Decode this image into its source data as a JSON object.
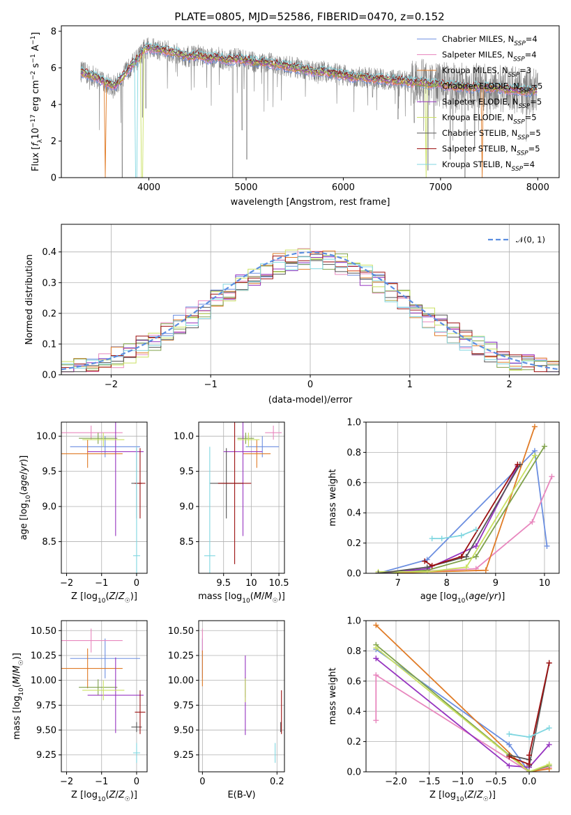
{
  "colors": [
    "#6b8ee0",
    "#e887be",
    "#e07b26",
    "#7fa14a",
    "#9634c0",
    "#c9e060",
    "#555555",
    "#9c1010",
    "#7fd6e0"
  ],
  "gray": "#808080",
  "norm_color": "#5b8ee0",
  "chart_data": [
    {
      "type": "line",
      "title": "PLATE=0805, MJD=52586, FIBERID=0470, z=0.152",
      "xlabel": "wavelength [Angstrom, rest frame]",
      "ylabel": "Flux [f_λ10^-17 erg cm^-2 s^-1 A^-1]",
      "xlim": [
        3100,
        8220
      ],
      "ylim": [
        0,
        8.3
      ],
      "xticks": [
        4000,
        5000,
        6000,
        7000,
        8000
      ],
      "yticks": [
        0,
        2,
        4,
        6,
        8
      ],
      "data_range": [
        3300,
        8000
      ],
      "model_continuum": {
        "x": [
          3300,
          3450,
          3550,
          3650,
          3700,
          3800,
          3900,
          3950,
          4000,
          4100,
          4200,
          4300,
          4400,
          4500,
          4600,
          4700,
          4800,
          4900,
          5000,
          5100,
          5200,
          5300,
          5400,
          5500,
          5600,
          5700,
          5800,
          5900,
          6000,
          6100,
          6200,
          6300,
          6400,
          6500,
          6600,
          6700,
          6800,
          6900,
          7000,
          7100,
          7200,
          7300,
          7400,
          7500,
          7600,
          7700,
          7800,
          7900,
          8000
        ],
        "y": [
          5.8,
          5.5,
          5.2,
          5.0,
          5.3,
          6.0,
          6.6,
          7.0,
          7.1,
          7.0,
          6.9,
          6.8,
          6.6,
          6.7,
          6.5,
          6.6,
          6.4,
          6.5,
          6.4,
          6.3,
          6.3,
          6.2,
          6.1,
          6.0,
          5.9,
          5.8,
          5.8,
          5.7,
          5.6,
          5.5,
          5.5,
          5.4,
          5.4,
          5.3,
          5.3,
          5.2,
          5.2,
          5.1,
          5.1,
          5.0,
          5.0,
          4.9,
          5.0,
          4.9,
          4.9,
          4.8,
          4.8,
          4.7,
          4.8
        ]
      },
      "data_dips": [
        {
          "x": 3727,
          "y": 0.0
        },
        {
          "x": 3935,
          "y": 3.3
        },
        {
          "x": 3970,
          "y": 3.8
        },
        {
          "x": 4862,
          "y": 0.0
        },
        {
          "x": 4959,
          "y": 2.6
        },
        {
          "x": 5007,
          "y": 1.0
        },
        {
          "x": 6300,
          "y": 4.4
        },
        {
          "x": 6563,
          "y": 3.2
        },
        {
          "x": 6730,
          "y": 3.0
        },
        {
          "x": 6870,
          "y": 0.4
        },
        {
          "x": 7100,
          "y": 1.0
        },
        {
          "x": 7250,
          "y": 0.0
        },
        {
          "x": 7350,
          "y": 1.5
        }
      ],
      "model_drops": [
        {
          "x": 3550,
          "series": 2
        },
        {
          "x": 3870,
          "series": 8
        },
        {
          "x": 3930,
          "series": 5
        },
        {
          "x": 6850,
          "series": 5
        },
        {
          "x": 7430,
          "series": 2
        }
      ],
      "series": [
        {
          "name": "Chabrier MILES, N_SSP=4",
          "color": 0
        },
        {
          "name": "Salpeter MILES, N_SSP=4",
          "color": 1
        },
        {
          "name": "Kroupa MILES, N_SSP=3",
          "color": 2
        },
        {
          "name": "Chabrier ELODIE, N_SSP=5",
          "color": 3
        },
        {
          "name": "Salpeter ELODIE, N_SSP=5",
          "color": 4
        },
        {
          "name": "Kroupa ELODIE, N_SSP=5",
          "color": 5
        },
        {
          "name": "Chabrier STELIB, N_SSP=5",
          "color": 6
        },
        {
          "name": "Salpeter STELIB, N_SSP=5",
          "color": 7
        },
        {
          "name": "Kroupa STELIB, N_SSP=4",
          "color": 8
        }
      ],
      "legend": "upper right"
    },
    {
      "type": "histogram",
      "xlabel": "(data-model)/error",
      "ylabel": "Normed distribution",
      "xlim": [
        -2.5,
        2.5
      ],
      "ylim": [
        0,
        0.49
      ],
      "xticks": [
        -2,
        -1,
        0,
        1,
        2
      ],
      "yticks": [
        0.0,
        0.1,
        0.2,
        0.3,
        0.4
      ],
      "bins": 40,
      "reference_curve": {
        "name": "N(0,1)",
        "mean": 0,
        "sd": 1
      },
      "legend": "upper right",
      "grid": true
    },
    {
      "type": "errorbar",
      "xlabel": "Z [log10(Z/Z☉)]",
      "ylabel": "age [log10(age/yr)]",
      "xlim": [
        -2.15,
        0.3
      ],
      "ylim": [
        8.05,
        10.2
      ],
      "xticks": [
        -2,
        -1,
        0
      ],
      "yticks": [
        8.5,
        9.0,
        9.5,
        10.0
      ],
      "points": [
        {
          "series": 0,
          "x": -0.9,
          "y": 9.85,
          "xerr": 1.0,
          "yerr": 0.15
        },
        {
          "series": 1,
          "x": -1.3,
          "y": 10.05,
          "xerr": 0.9,
          "yerr": 0.1
        },
        {
          "series": 2,
          "x": -1.4,
          "y": 9.75,
          "xerr": 1.0,
          "yerr": 0.2
        },
        {
          "series": 3,
          "x": -1.1,
          "y": 9.97,
          "xerr": 0.55,
          "yerr": 0.08
        },
        {
          "series": 4,
          "x": -0.6,
          "y": 9.78,
          "xerr": 0.8,
          "yerr": 1.2
        },
        {
          "series": 5,
          "x": -0.95,
          "y": 9.95,
          "xerr": 0.6,
          "yerr": 0.1
        },
        {
          "series": 6,
          "x": 0.0,
          "y": 9.33,
          "xerr": 0.15,
          "yerr": 0.5
        },
        {
          "series": 7,
          "x": 0.1,
          "y": 9.33,
          "xerr": 0.15,
          "yerr": 0.5
        },
        {
          "series": 8,
          "x": 0.0,
          "y": 8.3,
          "xerr": 0.1,
          "yerr": 1.55
        }
      ]
    },
    {
      "type": "errorbar",
      "xlabel": "mass [log10(M/M☉)]",
      "xlim": [
        9.05,
        10.6
      ],
      "ylim": [
        8.05,
        10.2
      ],
      "xticks": [
        9.5,
        10.0,
        10.5
      ],
      "yticks": [
        8.5,
        9.0,
        9.5,
        10.0
      ],
      "points": [
        {
          "series": 0,
          "x": 10.2,
          "y": 9.85,
          "xerr": 0.3,
          "yerr": 0.15
        },
        {
          "series": 1,
          "x": 10.4,
          "y": 10.05,
          "xerr": 0.15,
          "yerr": 0.1
        },
        {
          "series": 2,
          "x": 10.1,
          "y": 9.75,
          "xerr": 0.25,
          "yerr": 0.2
        },
        {
          "series": 3,
          "x": 9.9,
          "y": 9.97,
          "xerr": 0.15,
          "yerr": 0.08
        },
        {
          "series": 4,
          "x": 9.85,
          "y": 9.78,
          "xerr": 0.35,
          "yerr": 1.2
        },
        {
          "series": 5,
          "x": 9.95,
          "y": 9.95,
          "xerr": 0.2,
          "yerr": 0.1
        },
        {
          "series": 6,
          "x": 9.55,
          "y": 9.33,
          "xerr": 0.3,
          "yerr": 0.5
        },
        {
          "series": 7,
          "x": 9.7,
          "y": 9.33,
          "xerr": 0.3,
          "yerr": 1.15
        },
        {
          "series": 8,
          "x": 9.25,
          "y": 8.3,
          "xerr": 0.1,
          "yerr": 1.55
        }
      ]
    },
    {
      "type": "line",
      "xlabel": "age [log10(age/yr)]",
      "ylabel": "mass weight",
      "xlim": [
        6.35,
        10.3
      ],
      "ylim": [
        0,
        1.0
      ],
      "xticks": [
        7,
        8,
        9,
        10
      ],
      "yticks": [
        0.0,
        0.2,
        0.4,
        0.6,
        0.8,
        1.0
      ],
      "grid": true,
      "series": [
        {
          "color": 0,
          "x": [
            6.6,
            7.6,
            9.8,
            10.05
          ],
          "y": [
            0.0,
            0.09,
            0.81,
            0.18
          ]
        },
        {
          "color": 1,
          "x": [
            6.6,
            8.6,
            9.75,
            10.15
          ],
          "y": [
            0.0,
            0.03,
            0.34,
            0.64
          ]
        },
        {
          "color": 2,
          "x": [
            6.6,
            8.8,
            9.8
          ],
          "y": [
            0.0,
            0.02,
            0.97
          ]
        },
        {
          "color": 3,
          "x": [
            6.6,
            7.6,
            8.6,
            10.0
          ],
          "y": [
            0.0,
            0.02,
            0.11,
            0.84
          ]
        },
        {
          "color": 4,
          "x": [
            6.6,
            7.6,
            8.6,
            9.45
          ],
          "y": [
            0.0,
            0.03,
            0.18,
            0.71
          ]
        },
        {
          "color": 5,
          "x": [
            6.6,
            7.6,
            8.4,
            9.8
          ],
          "y": [
            0.01,
            0.01,
            0.04,
            0.78
          ]
        },
        {
          "color": 6,
          "x": [
            6.6,
            7.6,
            8.4,
            9.5
          ],
          "y": [
            0.0,
            0.04,
            0.11,
            0.72
          ]
        },
        {
          "color": 7,
          "x": [
            7.55,
            7.7,
            8.3,
            9.45
          ],
          "y": [
            0.08,
            0.05,
            0.11,
            0.72
          ]
        },
        {
          "color": 8,
          "x": [
            7.7,
            7.9,
            8.3,
            8.6
          ],
          "y": [
            0.23,
            0.23,
            0.25,
            0.29
          ]
        }
      ]
    },
    {
      "type": "errorbar",
      "xlabel": "Z [log10(Z/Z☉)]",
      "ylabel": "mass [log10(M/M☉)]",
      "xlim": [
        -2.15,
        0.3
      ],
      "ylim": [
        9.08,
        10.6
      ],
      "xticks": [
        -2,
        -1,
        0
      ],
      "yticks": [
        9.25,
        9.5,
        9.75,
        10.0,
        10.25,
        10.5
      ],
      "points": [
        {
          "series": 0,
          "x": -0.9,
          "y": 10.22,
          "xerr": 1.0,
          "yerr": 0.2
        },
        {
          "series": 1,
          "x": -1.3,
          "y": 10.4,
          "xerr": 0.9,
          "yerr": 0.12
        },
        {
          "series": 2,
          "x": -1.4,
          "y": 10.12,
          "xerr": 1.0,
          "yerr": 0.2
        },
        {
          "series": 3,
          "x": -1.1,
          "y": 9.93,
          "xerr": 0.55,
          "yerr": 0.08
        },
        {
          "series": 4,
          "x": -0.6,
          "y": 9.85,
          "xerr": 0.8,
          "yerr": 0.38
        },
        {
          "series": 5,
          "x": -0.95,
          "y": 9.9,
          "xerr": 0.6,
          "yerr": 0.1
        },
        {
          "series": 6,
          "x": 0.0,
          "y": 9.53,
          "xerr": 0.15,
          "yerr": 0.05
        },
        {
          "series": 7,
          "x": 0.1,
          "y": 9.68,
          "xerr": 0.15,
          "yerr": 0.22
        },
        {
          "series": 8,
          "x": 0.0,
          "y": 9.27,
          "xerr": 0.1,
          "yerr": 0.1
        }
      ]
    },
    {
      "type": "errorbar",
      "xlabel": "E(B-V)",
      "xlim": [
        -0.01,
        0.22
      ],
      "ylim": [
        9.08,
        10.6
      ],
      "xticks": [
        0.0,
        0.2
      ],
      "yticks": [
        9.25,
        9.5,
        9.75,
        10.0,
        10.25,
        10.5
      ],
      "points": [
        {
          "series": 0,
          "x": 0.0,
          "y": 10.22,
          "xerr": 0.0,
          "yerr": 0.2
        },
        {
          "series": 1,
          "x": 0.0,
          "y": 10.4,
          "xerr": 0.0,
          "yerr": 0.12
        },
        {
          "series": 2,
          "x": 0.0,
          "y": 10.12,
          "xerr": 0.0,
          "yerr": 0.18
        },
        {
          "series": 3,
          "x": 0.115,
          "y": 9.93,
          "xerr": 0.0,
          "yerr": 0.1
        },
        {
          "series": 4,
          "x": 0.115,
          "y": 9.85,
          "xerr": 0.0,
          "yerr": 0.4
        },
        {
          "series": 5,
          "x": 0.115,
          "y": 9.9,
          "xerr": 0.0,
          "yerr": 0.12
        },
        {
          "series": 6,
          "x": 0.21,
          "y": 9.53,
          "xerr": 0.0,
          "yerr": 0.05
        },
        {
          "series": 7,
          "x": 0.212,
          "y": 9.68,
          "xerr": 0.0,
          "yerr": 0.22
        },
        {
          "series": 8,
          "x": 0.195,
          "y": 9.27,
          "xerr": 0.0,
          "yerr": 0.1
        }
      ]
    },
    {
      "type": "line",
      "xlabel": "Z [log10(Z/Z☉)]",
      "ylabel": "mass weight",
      "xlim": [
        -2.45,
        0.45
      ],
      "ylim": [
        0,
        1.0
      ],
      "xticks": [
        -2.0,
        -1.5,
        -1.0,
        -0.5,
        0.0
      ],
      "yticks": [
        0.0,
        0.2,
        0.4,
        0.6,
        0.8,
        1.0
      ],
      "grid": true,
      "series": [
        {
          "color": 0,
          "x": [
            -2.3,
            -0.3,
            0.0
          ],
          "y": [
            0.81,
            0.18,
            0.0
          ]
        },
        {
          "color": 1,
          "x": [
            -2.3,
            -2.3,
            0.0,
            0.3
          ],
          "y": [
            0.34,
            0.64,
            0.0,
            0.03
          ]
        },
        {
          "color": 2,
          "x": [
            -2.3,
            0.0,
            0.3
          ],
          "y": [
            0.97,
            0.0,
            0.02
          ]
        },
        {
          "color": 3,
          "x": [
            -2.3,
            -0.3,
            0.0,
            0.3
          ],
          "y": [
            0.84,
            0.11,
            0.0,
            0.04
          ]
        },
        {
          "color": 4,
          "x": [
            -2.3,
            -0.3,
            0.0,
            0.3
          ],
          "y": [
            0.75,
            0.04,
            0.03,
            0.18
          ]
        },
        {
          "color": 5,
          "x": [
            -2.3,
            0.0,
            0.3
          ],
          "y": [
            0.82,
            0.0,
            0.05
          ]
        },
        {
          "color": 6,
          "x": [
            -0.3,
            0.0,
            0.0,
            0.3
          ],
          "y": [
            0.11,
            0.08,
            0.04,
            0.72
          ]
        },
        {
          "color": 7,
          "x": [
            -0.3,
            0.0,
            0.0,
            0.3
          ],
          "y": [
            0.1,
            0.05,
            0.11,
            0.72
          ]
        },
        {
          "color": 8,
          "x": [
            -0.3,
            0.0,
            0.3
          ],
          "y": [
            0.25,
            0.23,
            0.29
          ]
        }
      ]
    }
  ]
}
